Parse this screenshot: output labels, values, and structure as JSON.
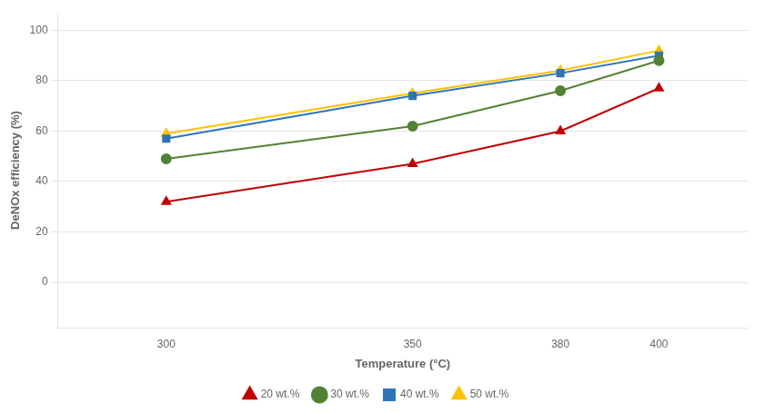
{
  "chart_data": {
    "type": "line",
    "x": [
      300,
      350,
      380,
      400
    ],
    "series": [
      {
        "name": "20 wt.%",
        "color": "#C00000",
        "marker": "triangle",
        "values": [
          32,
          47,
          60,
          77
        ]
      },
      {
        "name": "30 wt.%",
        "color": "#538135",
        "marker": "circle",
        "values": [
          49,
          62,
          76,
          88
        ]
      },
      {
        "name": "40 wt.%",
        "color": "#2E75B6",
        "marker": "square",
        "values": [
          57,
          74,
          83,
          90
        ]
      },
      {
        "name": "50 wt.%",
        "color": "#FFC000",
        "marker": "triangle",
        "values": [
          59,
          75,
          84,
          92
        ]
      }
    ],
    "xlabel": "Temperature (°C)",
    "ylabel": "DeNOx efficiency (%)",
    "xlim": [
      278,
      418
    ],
    "ylim": [
      -18,
      107
    ],
    "xticks": [
      300,
      350,
      380,
      400
    ],
    "yticks": [
      0,
      20,
      40,
      60,
      80,
      100
    ],
    "grid": true,
    "legend": "lower center"
  }
}
